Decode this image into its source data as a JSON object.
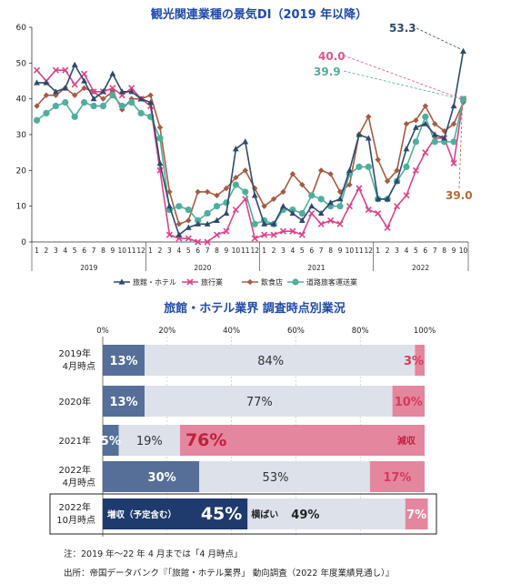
{
  "line_chart": {
    "title": "観光関連業種の景気DI（2019 年以降）",
    "y_ticks": [
      "0",
      "10",
      "20",
      "30",
      "40",
      "50",
      "60"
    ],
    "month_labels": [
      "1",
      "2",
      "3",
      "4",
      "5",
      "6",
      "7",
      "8",
      "9",
      "10",
      "11",
      "12",
      "1",
      "2",
      "3",
      "4",
      "5",
      "6",
      "7",
      "8",
      "9",
      "10",
      "11",
      "12",
      "1",
      "2",
      "3",
      "4",
      "5",
      "6",
      "7",
      "8",
      "9",
      "10",
      "11",
      "12",
      "1",
      "2",
      "3",
      "4",
      "5",
      "6",
      "7",
      "8",
      "9",
      "10"
    ],
    "year_labels": [
      "2019",
      "2020",
      "2021",
      "2022"
    ],
    "callouts": [
      "53.3",
      "40.0",
      "39.9",
      "39.0"
    ],
    "legend": [
      "旅館・ホテル",
      "旅行業",
      "飲食店",
      "道路旅客運送業"
    ]
  },
  "bar_chart": {
    "title": "旅館・ホテル業界 調査時点別業況",
    "axis_ticks": [
      "0%",
      "20%",
      "40%",
      "60%",
      "80%",
      "100%"
    ],
    "rows": [
      {
        "label_line1": "2019年",
        "label_line2": "4月時点",
        "inc_text": "13%",
        "flat_text": "84%",
        "dec_text": "3%",
        "extra": ""
      },
      {
        "label_line1": "2020年",
        "label_line2": "",
        "inc_text": "13%",
        "flat_text": "77%",
        "dec_text": "10%",
        "extra": ""
      },
      {
        "label_line1": "2021年",
        "label_line2": "",
        "inc_text": "5%",
        "flat_text": "19%",
        "dec_text": "76%",
        "extra": "減収"
      },
      {
        "label_line1": "2022年",
        "label_line2": "4月時点",
        "inc_text": "30%",
        "flat_text": "53%",
        "dec_text": "17%",
        "extra": ""
      },
      {
        "label_line1": "2022年",
        "label_line2": "10月時点",
        "inc_text": "45%",
        "flat_text": "49%",
        "dec_text": "7%",
        "extra": ""
      }
    ],
    "inc_label": "増収（予定含む）",
    "flat_label": "横ばい",
    "note": "注：2019 年～22 年 4 月までは「4 月時点」",
    "source": "出所：帝国データバンク『「旅館・ホテル業界」 動向調査（2022 年度業績見通し）』"
  },
  "chart_data": [
    {
      "type": "line",
      "title": "観光関連業種の景気DI（2019 年以降）",
      "xlabel": "",
      "ylabel": "",
      "ylim": [
        0,
        60
      ],
      "x": [
        "2019-01",
        "2019-02",
        "2019-03",
        "2019-04",
        "2019-05",
        "2019-06",
        "2019-07",
        "2019-08",
        "2019-09",
        "2019-10",
        "2019-11",
        "2019-12",
        "2020-01",
        "2020-02",
        "2020-03",
        "2020-04",
        "2020-05",
        "2020-06",
        "2020-07",
        "2020-08",
        "2020-09",
        "2020-10",
        "2020-11",
        "2020-12",
        "2021-01",
        "2021-02",
        "2021-03",
        "2021-04",
        "2021-05",
        "2021-06",
        "2021-07",
        "2021-08",
        "2021-09",
        "2021-10",
        "2021-11",
        "2021-12",
        "2022-01",
        "2022-02",
        "2022-03",
        "2022-04",
        "2022-05",
        "2022-06",
        "2022-07",
        "2022-08",
        "2022-09",
        "2022-10"
      ],
      "series": [
        {
          "name": "旅館・ホテル",
          "color": "#2e4a6b",
          "marker": "triangle",
          "values": [
            44.5,
            44.5,
            42,
            43,
            49.5,
            45,
            40,
            42,
            47,
            42,
            42,
            40,
            39,
            22,
            10,
            2,
            4,
            5,
            5,
            6,
            8,
            26,
            28,
            13,
            5,
            5,
            10,
            8,
            6,
            10,
            8,
            11,
            12,
            20,
            30,
            29,
            12,
            12,
            17,
            26,
            32,
            33,
            30,
            29,
            38,
            53.3
          ]
        },
        {
          "name": "旅行業",
          "color": "#d9448a",
          "marker": "x",
          "values": [
            48,
            45,
            48,
            48,
            44,
            47,
            42,
            42,
            43,
            41,
            43,
            40,
            38,
            20,
            2,
            1,
            1,
            0,
            0,
            2,
            3,
            9,
            12,
            1,
            2,
            2,
            3,
            3,
            2,
            8,
            5,
            6,
            5,
            10,
            15,
            9,
            8,
            4,
            10,
            13,
            20,
            25,
            29,
            29,
            22,
            40.0
          ]
        },
        {
          "name": "飲食店",
          "color": "#a55b43",
          "marker": "diamond",
          "values": [
            38,
            41,
            41,
            43,
            41,
            43,
            42,
            40,
            42,
            37,
            40,
            40,
            41,
            32,
            14,
            5,
            6,
            14,
            14,
            13,
            15,
            18,
            20,
            15,
            10,
            12,
            14,
            19,
            16,
            13,
            20,
            19,
            14,
            16,
            30,
            35,
            23,
            17,
            20,
            33,
            34,
            38,
            33,
            31,
            33,
            39.0
          ]
        },
        {
          "name": "道路旅客運送業",
          "color": "#4fae9c",
          "marker": "circle",
          "values": [
            34,
            36,
            38,
            39,
            35,
            39,
            38,
            38,
            41,
            38,
            39,
            36,
            35,
            29,
            9,
            10,
            9,
            6,
            8,
            10,
            11,
            16,
            14,
            5,
            6,
            5,
            9,
            9,
            8,
            13,
            12,
            10,
            10,
            19,
            21,
            21,
            12,
            12,
            17,
            21,
            28,
            35,
            28,
            28,
            28,
            39.9
          ]
        }
      ]
    },
    {
      "type": "bar",
      "title": "旅館・ホテル業界 調査時点別業況",
      "orientation": "horizontal-stacked",
      "xlim": [
        0,
        100
      ],
      "categories": [
        "2019年4月時点",
        "2020年",
        "2021年",
        "2022年4月時点",
        "2022年10月時点"
      ],
      "series": [
        {
          "name": "増収（予定含む）",
          "values": [
            13,
            13,
            5,
            30,
            45
          ]
        },
        {
          "name": "横ばい",
          "values": [
            84,
            77,
            19,
            53,
            49
          ]
        },
        {
          "name": "減収",
          "values": [
            3,
            10,
            76,
            17,
            7
          ]
        }
      ]
    }
  ]
}
